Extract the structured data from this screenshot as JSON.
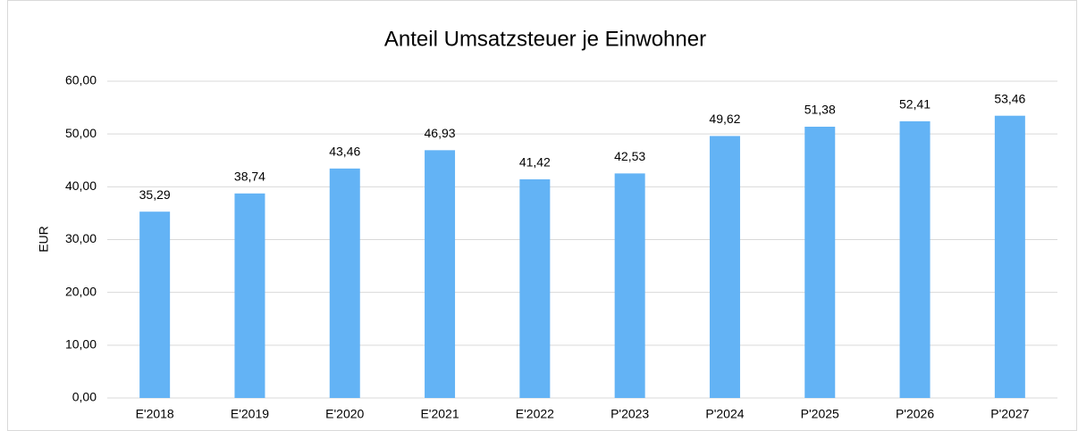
{
  "chart_data": {
    "type": "bar",
    "title": "Anteil Umsatzsteuer je Einwohner",
    "y_label": "EUR",
    "categories": [
      "E'2018",
      "E'2019",
      "E'2020",
      "E'2021",
      "E'2022",
      "P'2023",
      "P'2024",
      "P'2025",
      "P'2026",
      "P'2027"
    ],
    "values": [
      35.29,
      38.74,
      43.46,
      46.93,
      41.42,
      42.53,
      49.62,
      51.38,
      52.41,
      53.46
    ],
    "value_labels": [
      "35,29",
      "38,74",
      "43,46",
      "46,93",
      "41,42",
      "42,53",
      "49,62",
      "51,38",
      "52,41",
      "53,46"
    ],
    "color": "#63b3f5",
    "ylim": [
      0,
      60
    ],
    "yticks": [
      {
        "value": 0,
        "label": "0,00"
      },
      {
        "value": 10,
        "label": "10,00"
      },
      {
        "value": 20,
        "label": "20,00"
      },
      {
        "value": 30,
        "label": "30,00"
      },
      {
        "value": 40,
        "label": "40,00"
      },
      {
        "value": 50,
        "label": "50,00"
      },
      {
        "value": 60,
        "label": "60,00"
      }
    ],
    "grid": true
  }
}
